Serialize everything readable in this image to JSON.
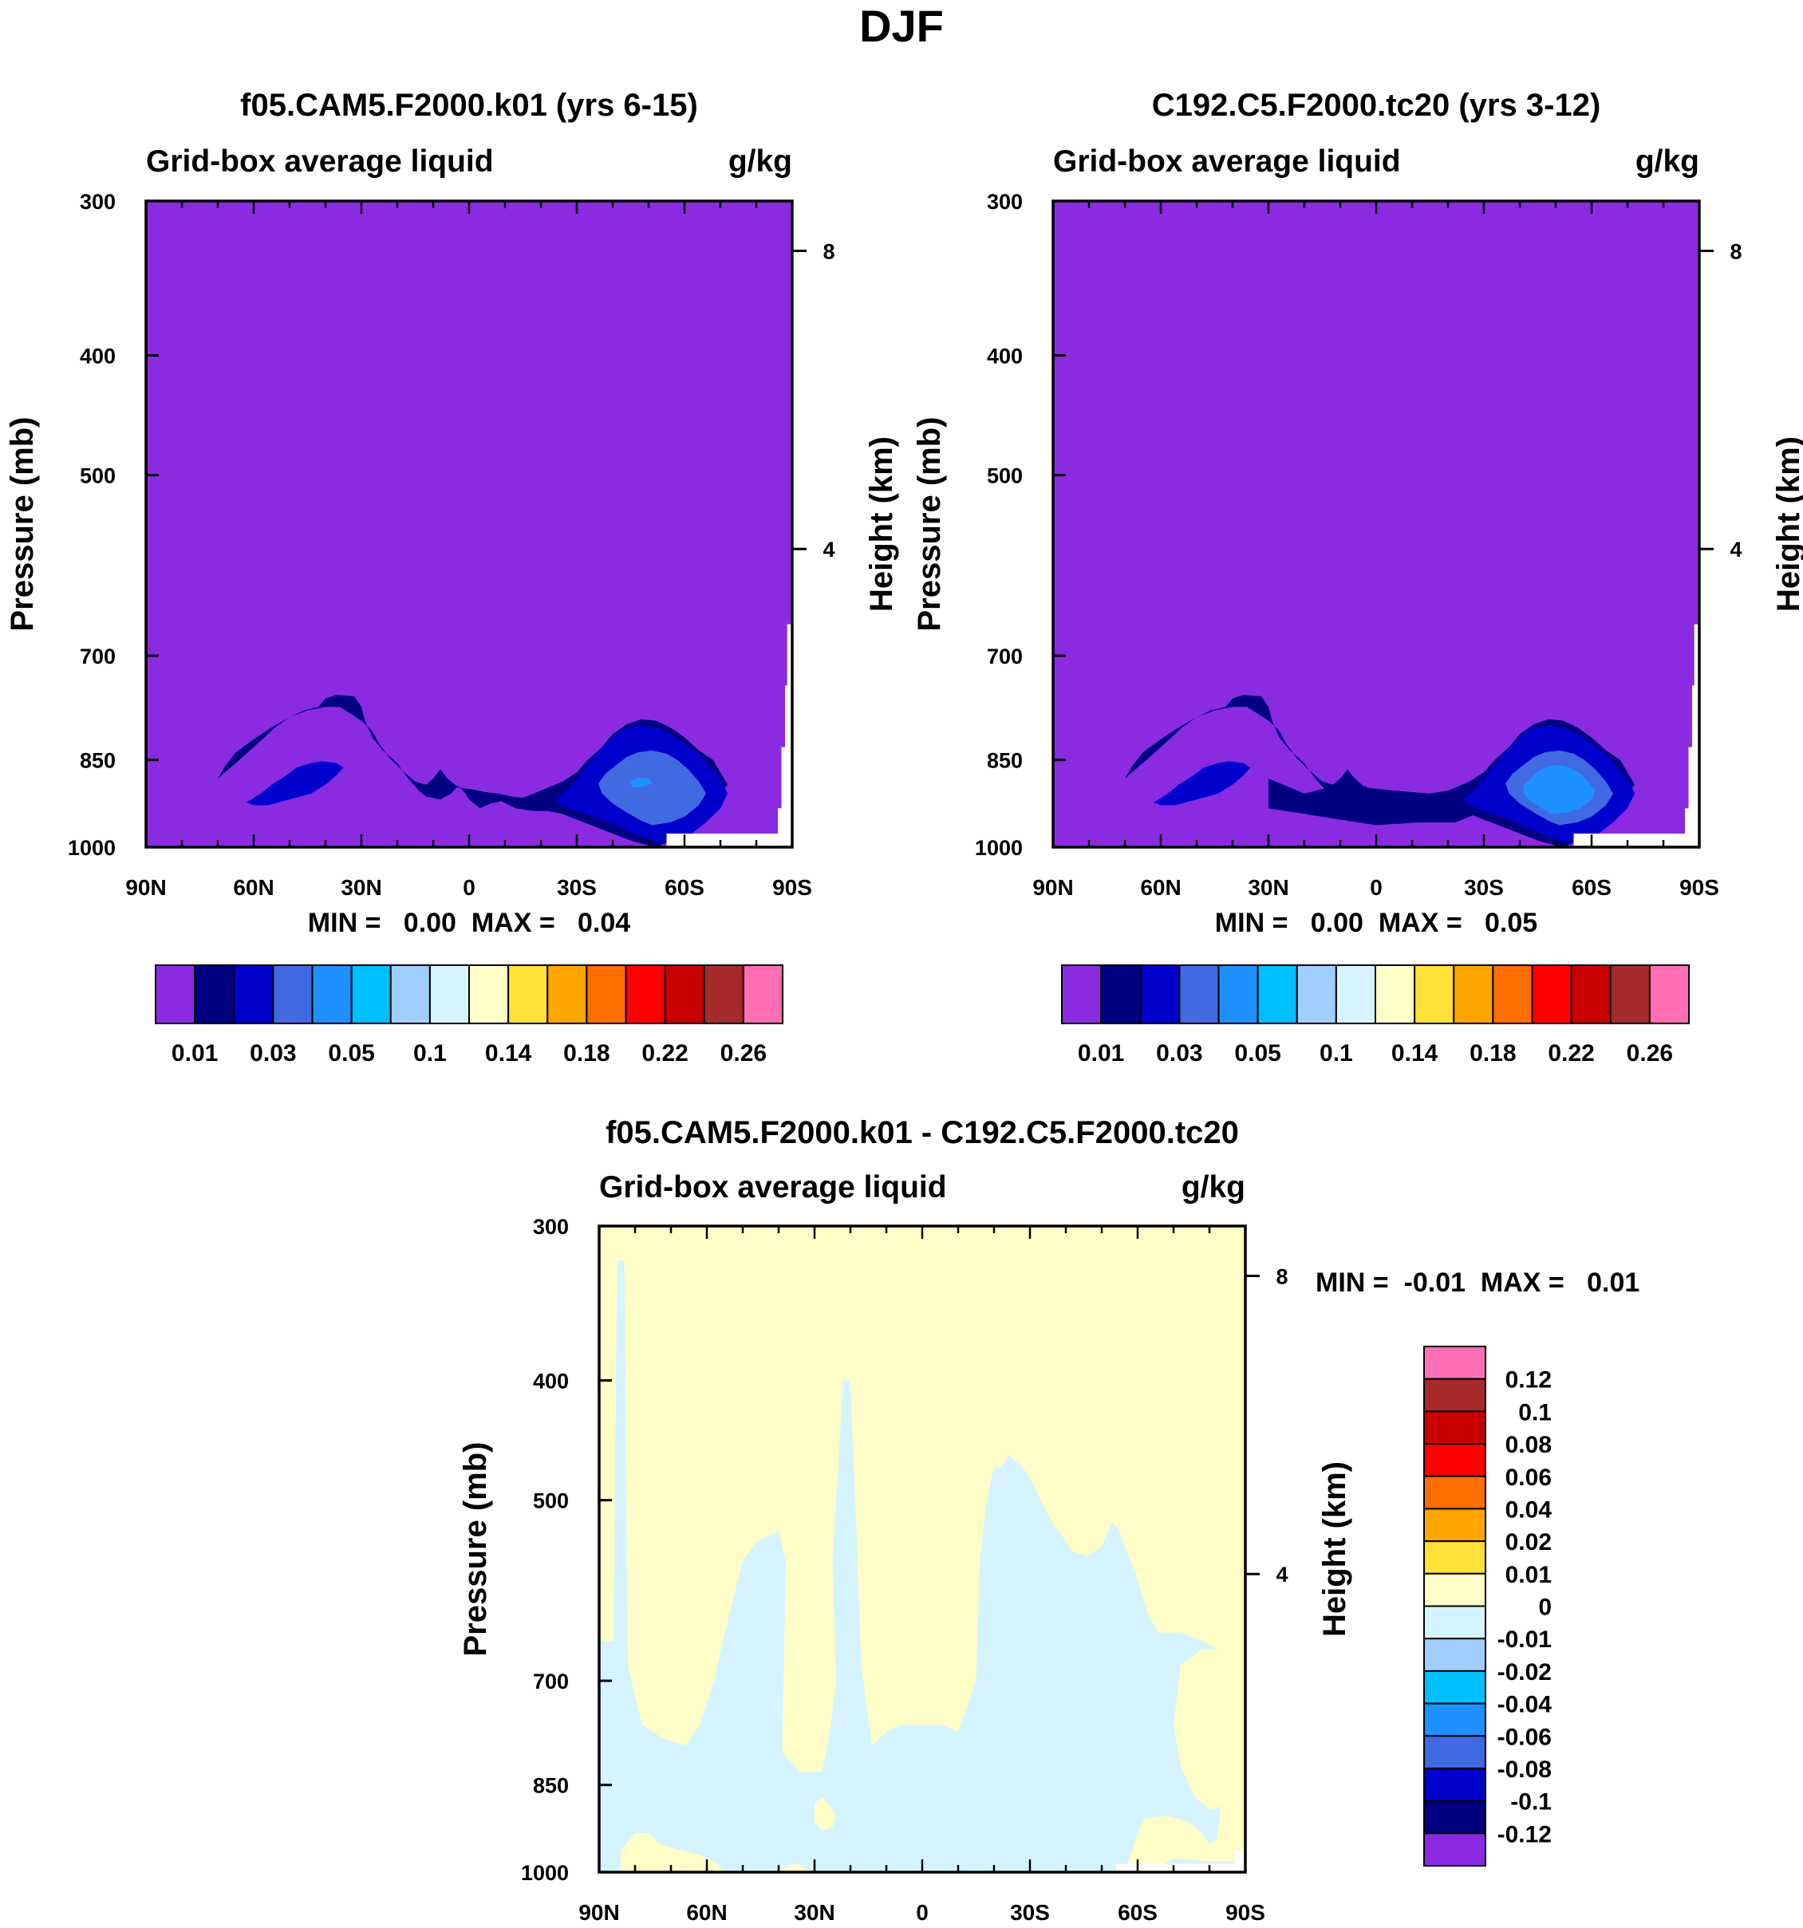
{
  "figure_title": "DJF",
  "chart_data": [
    {
      "type": "heatmap",
      "title": "f05.CAM5.F2000.k01 (yrs 6-15)",
      "left_label": "Grid-box average liquid",
      "units": "g/kg",
      "ylabel": "Pressure (mb)",
      "right_ylabel": "Height (km)",
      "x_ticks": [
        "90N",
        "60N",
        "30N",
        "0",
        "30S",
        "60S",
        "90S"
      ],
      "y_ticks": [
        300,
        400,
        500,
        700,
        850,
        1000
      ],
      "right_ticks": [
        8,
        4
      ],
      "ylim": [
        1000,
        300
      ],
      "min_max_text": "MIN =   0.00  MAX =   0.04",
      "min": 0.0,
      "max": 0.04,
      "levels": [
        "0.01",
        "0.03",
        "0.05",
        "0.1",
        "0.14",
        "0.18",
        "0.22",
        "0.26"
      ],
      "colors": [
        "#8a2be2",
        "#000080",
        "#0000cd",
        "#4169e1",
        "#1e90ff",
        "#00bfff",
        "#a0cfff",
        "#d6f4ff",
        "#fffdc7",
        "#ffe137",
        "#ffa500",
        "#ff6e00",
        "#ff0000",
        "#c80000",
        "#a52a2a",
        "#ff6eb4"
      ]
    },
    {
      "type": "heatmap",
      "title": "C192.C5.F2000.tc20 (yrs 3-12)",
      "left_label": "Grid-box average liquid",
      "units": "g/kg",
      "ylabel": "Pressure (mb)",
      "right_ylabel": "Height (km)",
      "x_ticks": [
        "90N",
        "60N",
        "30N",
        "0",
        "30S",
        "60S",
        "90S"
      ],
      "y_ticks": [
        300,
        400,
        500,
        700,
        850,
        1000
      ],
      "right_ticks": [
        8,
        4
      ],
      "ylim": [
        1000,
        300
      ],
      "min_max_text": "MIN =   0.00  MAX =   0.05",
      "min": 0.0,
      "max": 0.05,
      "levels": [
        "0.01",
        "0.03",
        "0.05",
        "0.1",
        "0.14",
        "0.18",
        "0.22",
        "0.26"
      ],
      "colors": [
        "#8a2be2",
        "#000080",
        "#0000cd",
        "#4169e1",
        "#1e90ff",
        "#00bfff",
        "#a0cfff",
        "#d6f4ff",
        "#fffdc7",
        "#ffe137",
        "#ffa500",
        "#ff6e00",
        "#ff0000",
        "#c80000",
        "#a52a2a",
        "#ff6eb4"
      ]
    },
    {
      "type": "heatmap",
      "title": "f05.CAM5.F2000.k01 - C192.C5.F2000.tc20",
      "left_label": "Grid-box average liquid",
      "units": "g/kg",
      "ylabel": "Pressure (mb)",
      "right_ylabel": "Height (km)",
      "x_ticks": [
        "90N",
        "60N",
        "30N",
        "0",
        "30S",
        "60S",
        "90S"
      ],
      "y_ticks": [
        300,
        400,
        500,
        700,
        850,
        1000
      ],
      "right_ticks": [
        8,
        4
      ],
      "ylim": [
        1000,
        300
      ],
      "min_max_text": "MIN =  -0.01  MAX =   0.01",
      "min": -0.01,
      "max": 0.01,
      "levels": [
        "0.12",
        "0.1",
        "0.08",
        "0.06",
        "0.04",
        "0.02",
        "0.01",
        "0",
        "-0.01",
        "-0.02",
        "-0.04",
        "-0.06",
        "-0.08",
        "-0.1",
        "-0.12"
      ],
      "colors": [
        "#ff6eb4",
        "#a52a2a",
        "#c80000",
        "#ff0000",
        "#ff6e00",
        "#ffa500",
        "#ffe137",
        "#fffdc7",
        "#d6f4ff",
        "#a0cfff",
        "#00bfff",
        "#1e90ff",
        "#4169e1",
        "#0000cd",
        "#000080",
        "#8a2be2"
      ]
    }
  ]
}
